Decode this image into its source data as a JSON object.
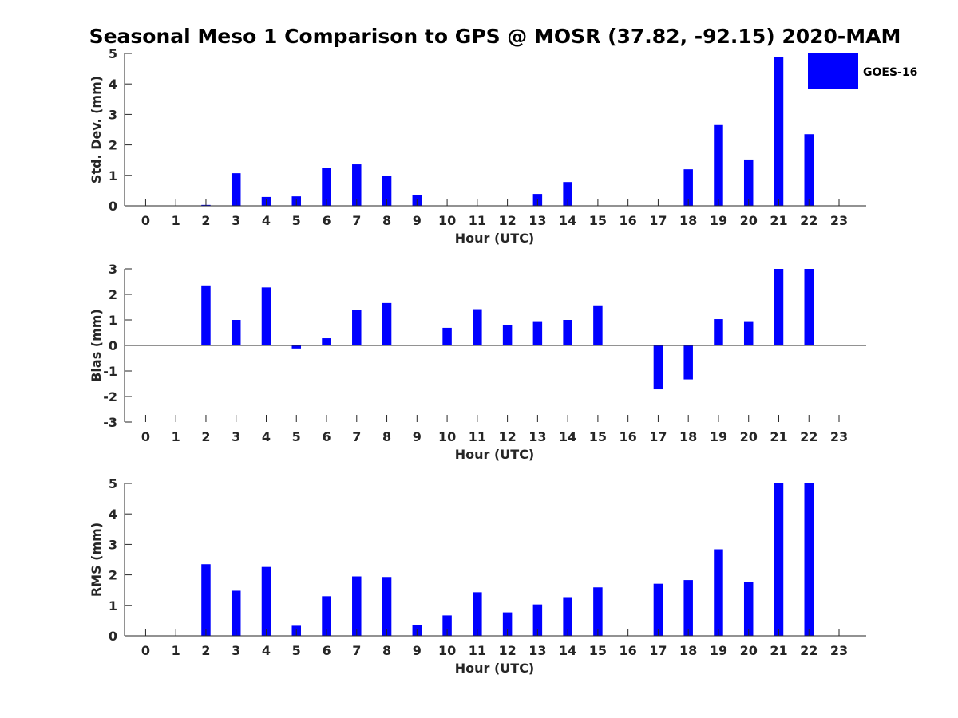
{
  "figure": {
    "title": "Seasonal Meso 1 Comparison to GPS @ MOSR (37.82, -92.15) 2020-MAM",
    "legend": {
      "label": "GOES-16",
      "color": "#0000ff",
      "position": "top-right"
    }
  },
  "chart_data": [
    {
      "type": "bar",
      "title": "Seasonal Meso 1 Comparison to GPS @ MOSR (37.82, -92.15) 2020-MAM",
      "series": [
        {
          "name": "GOES-16",
          "color": "#0000ff",
          "values": [
            null,
            null,
            0.03,
            1.07,
            0.29,
            0.31,
            1.25,
            1.36,
            0.97,
            0.36,
            null,
            null,
            null,
            0.39,
            0.78,
            null,
            null,
            null,
            1.2,
            2.65,
            1.52,
            4.87,
            2.35,
            null
          ]
        }
      ],
      "x": [
        0,
        1,
        2,
        3,
        4,
        5,
        6,
        7,
        8,
        9,
        10,
        11,
        12,
        13,
        14,
        15,
        16,
        17,
        18,
        19,
        20,
        21,
        22,
        23
      ],
      "xlabel": "Hour (UTC)",
      "ylabel": "Std. Dev. (mm)",
      "ylim": [
        0,
        5
      ],
      "yticks": [
        0,
        1,
        2,
        3,
        4,
        5
      ],
      "xlim": [
        -0.7,
        23.9
      ],
      "grid": false,
      "legend": "top-right"
    },
    {
      "type": "bar",
      "series": [
        {
          "name": "GOES-16",
          "color": "#0000ff",
          "values": [
            null,
            null,
            2.35,
            1.0,
            2.27,
            -0.12,
            0.28,
            1.38,
            1.66,
            null,
            0.69,
            1.42,
            0.79,
            0.95,
            1.0,
            1.57,
            null,
            -1.72,
            -1.33,
            1.03,
            0.95,
            3.0,
            3.0,
            null
          ]
        }
      ],
      "x": [
        0,
        1,
        2,
        3,
        4,
        5,
        6,
        7,
        8,
        9,
        10,
        11,
        12,
        13,
        14,
        15,
        16,
        17,
        18,
        19,
        20,
        21,
        22,
        23
      ],
      "xlabel": "Hour (UTC)",
      "ylabel": "Bias (mm)",
      "ylim": [
        -3,
        3
      ],
      "yticks": [
        -3,
        -2,
        -1,
        0,
        1,
        2,
        3
      ],
      "xlim": [
        -0.7,
        23.9
      ],
      "grid": false
    },
    {
      "type": "bar",
      "series": [
        {
          "name": "GOES-16",
          "color": "#0000ff",
          "values": [
            null,
            null,
            2.35,
            1.48,
            2.26,
            0.33,
            1.3,
            1.95,
            1.93,
            0.36,
            0.67,
            1.43,
            0.77,
            1.03,
            1.27,
            1.59,
            null,
            1.71,
            1.83,
            2.84,
            1.77,
            5.0,
            5.0,
            null
          ]
        }
      ],
      "x": [
        0,
        1,
        2,
        3,
        4,
        5,
        6,
        7,
        8,
        9,
        10,
        11,
        12,
        13,
        14,
        15,
        16,
        17,
        18,
        19,
        20,
        21,
        22,
        23
      ],
      "xlabel": "Hour (UTC)",
      "ylabel": "RMS (mm)",
      "ylim": [
        0,
        5
      ],
      "yticks": [
        0,
        1,
        2,
        3,
        4,
        5
      ],
      "xlim": [
        -0.7,
        23.9
      ],
      "grid": false
    }
  ]
}
